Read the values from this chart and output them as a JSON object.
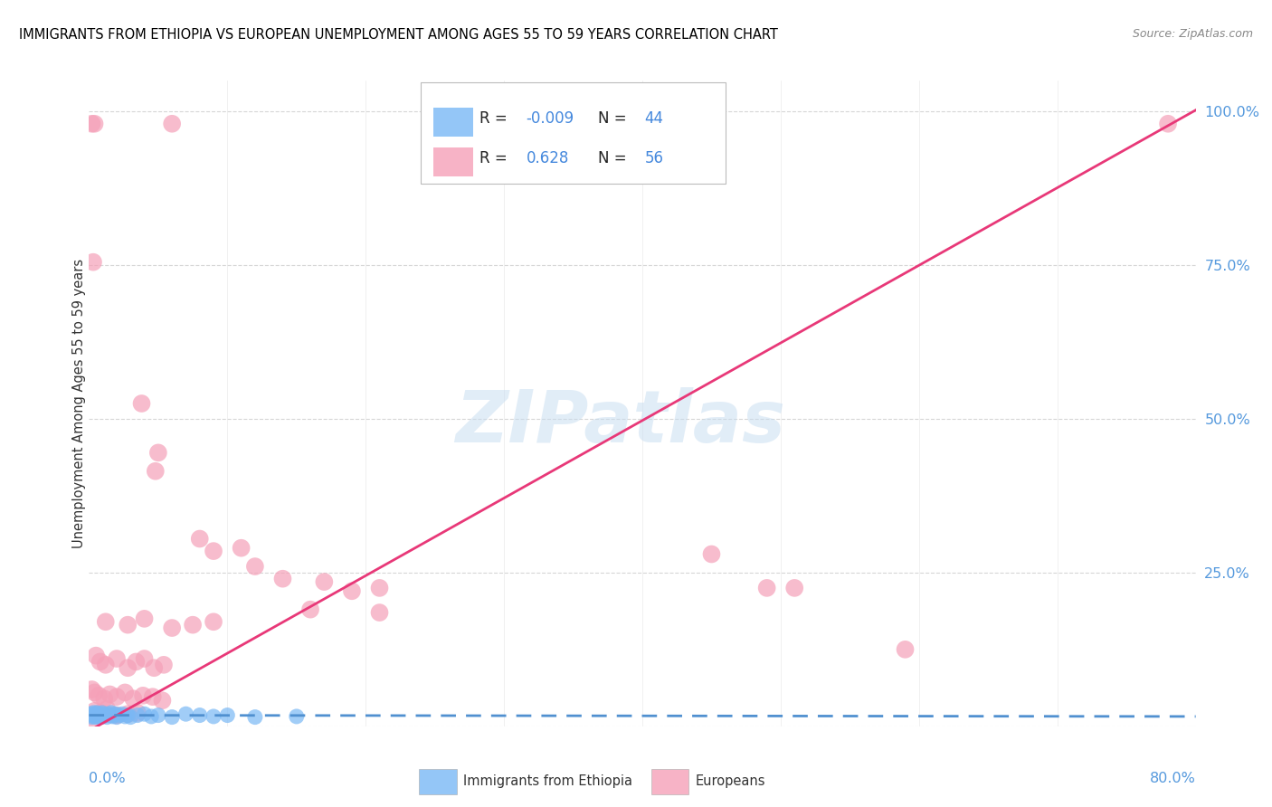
{
  "title": "IMMIGRANTS FROM ETHIOPIA VS EUROPEAN UNEMPLOYMENT AMONG AGES 55 TO 59 YEARS CORRELATION CHART",
  "source": "Source: ZipAtlas.com",
  "ylabel": "Unemployment Among Ages 55 to 59 years",
  "watermark": "ZIPatlas",
  "ethiopia_color": "#7ab8f5",
  "european_color": "#f5a0b8",
  "ethiopia_trend_color": "#5090d0",
  "european_trend_color": "#e83878",
  "background_color": "#ffffff",
  "grid_color": "#cccccc",
  "ethiopia_points": [
    [
      0.0015,
      0.02
    ],
    [
      0.002,
      0.015
    ],
    [
      0.0025,
      0.018
    ],
    [
      0.003,
      0.022
    ],
    [
      0.0035,
      0.016
    ],
    [
      0.004,
      0.02
    ],
    [
      0.0045,
      0.018
    ],
    [
      0.005,
      0.015
    ],
    [
      0.0055,
      0.022
    ],
    [
      0.006,
      0.018
    ],
    [
      0.0065,
      0.02
    ],
    [
      0.007,
      0.016
    ],
    [
      0.0075,
      0.018
    ],
    [
      0.008,
      0.02
    ],
    [
      0.0085,
      0.015
    ],
    [
      0.009,
      0.018
    ],
    [
      0.0095,
      0.022
    ],
    [
      0.01,
      0.016
    ],
    [
      0.011,
      0.02
    ],
    [
      0.012,
      0.018
    ],
    [
      0.013,
      0.015
    ],
    [
      0.014,
      0.02
    ],
    [
      0.015,
      0.018
    ],
    [
      0.016,
      0.022
    ],
    [
      0.017,
      0.016
    ],
    [
      0.018,
      0.018
    ],
    [
      0.019,
      0.02
    ],
    [
      0.02,
      0.015
    ],
    [
      0.022,
      0.018
    ],
    [
      0.024,
      0.02
    ],
    [
      0.026,
      0.016
    ],
    [
      0.028,
      0.018
    ],
    [
      0.03,
      0.015
    ],
    [
      0.035,
      0.018
    ],
    [
      0.04,
      0.02
    ],
    [
      0.045,
      0.016
    ],
    [
      0.05,
      0.018
    ],
    [
      0.06,
      0.015
    ],
    [
      0.07,
      0.02
    ],
    [
      0.08,
      0.018
    ],
    [
      0.09,
      0.016
    ],
    [
      0.1,
      0.018
    ],
    [
      0.12,
      0.015
    ],
    [
      0.15,
      0.016
    ]
  ],
  "european_points": [
    [
      0.002,
      0.98
    ],
    [
      0.004,
      0.98
    ],
    [
      0.06,
      0.98
    ],
    [
      0.78,
      0.98
    ],
    [
      0.003,
      0.755
    ],
    [
      0.038,
      0.525
    ],
    [
      0.05,
      0.445
    ],
    [
      0.048,
      0.415
    ],
    [
      0.08,
      0.305
    ],
    [
      0.09,
      0.285
    ],
    [
      0.11,
      0.29
    ],
    [
      0.12,
      0.26
    ],
    [
      0.45,
      0.28
    ],
    [
      0.14,
      0.24
    ],
    [
      0.17,
      0.235
    ],
    [
      0.19,
      0.22
    ],
    [
      0.21,
      0.225
    ],
    [
      0.49,
      0.225
    ],
    [
      0.51,
      0.225
    ],
    [
      0.16,
      0.19
    ],
    [
      0.21,
      0.185
    ],
    [
      0.012,
      0.17
    ],
    [
      0.028,
      0.165
    ],
    [
      0.04,
      0.175
    ],
    [
      0.06,
      0.16
    ],
    [
      0.075,
      0.165
    ],
    [
      0.09,
      0.17
    ],
    [
      0.005,
      0.115
    ],
    [
      0.008,
      0.105
    ],
    [
      0.012,
      0.1
    ],
    [
      0.02,
      0.11
    ],
    [
      0.028,
      0.095
    ],
    [
      0.034,
      0.105
    ],
    [
      0.04,
      0.11
    ],
    [
      0.047,
      0.095
    ],
    [
      0.054,
      0.1
    ],
    [
      0.002,
      0.06
    ],
    [
      0.004,
      0.055
    ],
    [
      0.007,
      0.05
    ],
    [
      0.011,
      0.045
    ],
    [
      0.015,
      0.052
    ],
    [
      0.02,
      0.048
    ],
    [
      0.026,
      0.055
    ],
    [
      0.032,
      0.045
    ],
    [
      0.039,
      0.05
    ],
    [
      0.046,
      0.048
    ],
    [
      0.053,
      0.042
    ],
    [
      0.004,
      0.025
    ],
    [
      0.008,
      0.022
    ],
    [
      0.013,
      0.028
    ],
    [
      0.02,
      0.018
    ],
    [
      0.028,
      0.02
    ],
    [
      0.035,
      0.022
    ],
    [
      0.002,
      0.012
    ],
    [
      0.59,
      0.125
    ]
  ],
  "xlim": [
    0,
    0.8
  ],
  "ylim": [
    0,
    1.05
  ],
  "xtick_positions": [
    0.0,
    0.1,
    0.2,
    0.3,
    0.4,
    0.5,
    0.6,
    0.7,
    0.8
  ],
  "ytick_positions": [
    0.0,
    0.25,
    0.5,
    0.75,
    1.0
  ],
  "ytick_labels": [
    "",
    "25.0%",
    "50.0%",
    "75.0%",
    "100.0%"
  ]
}
